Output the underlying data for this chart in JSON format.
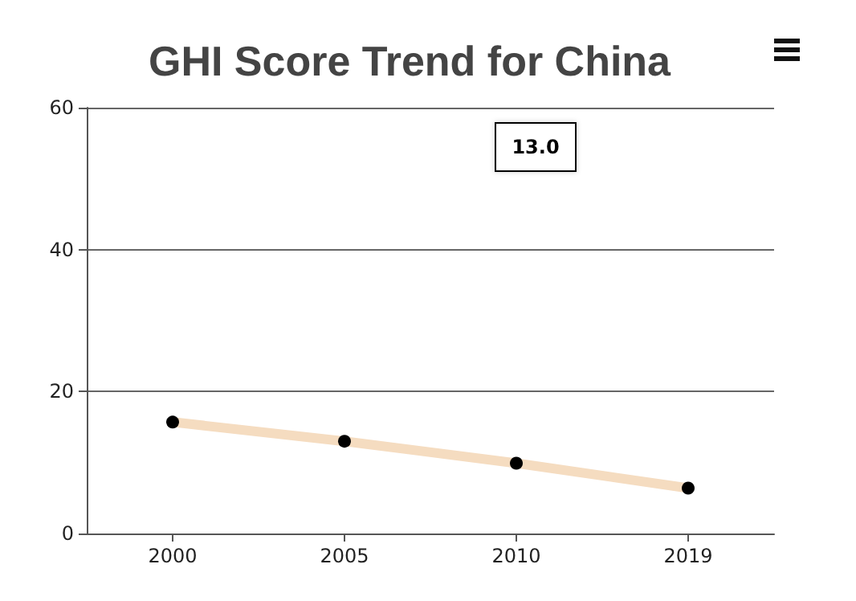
{
  "chart_data": {
    "type": "line",
    "title": "GHI Score Trend for China",
    "categories": [
      "2000",
      "2005",
      "2010",
      "2019"
    ],
    "series": [
      {
        "color": "#f5dcc0",
        "values": [
          15.7,
          13.0,
          9.9,
          6.4
        ]
      }
    ],
    "ylim": [
      0,
      60
    ],
    "yticks": [
      0,
      20,
      40,
      60
    ],
    "grid": "y",
    "marker": "circle",
    "line_style": "solid",
    "annotations": [
      "13.0"
    ]
  }
}
